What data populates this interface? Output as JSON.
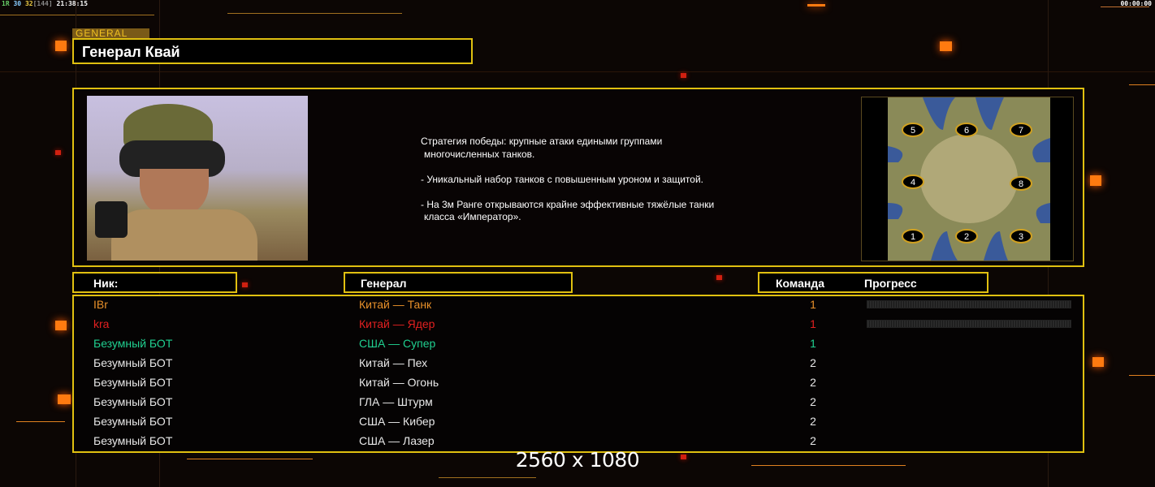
{
  "status_bar": {
    "fps_label": "1R",
    "fps_a": "30",
    "fps_b": "32",
    "fps_c": "[144]",
    "clock": "21:38:15",
    "timer": "00:00:00"
  },
  "general": {
    "tag": "GENERAL",
    "title": "Генерал Квай",
    "description": [
      "Стратегия победы: крупные атаки едиными группами",
      "многочисленных танков.",
      "",
      "- Уникальный набор танков с повышенным уроном и защитой.",
      "",
      "- На 3м Ранге открываются крайне эффективные тяжёлые танки",
      "класса «Император»."
    ]
  },
  "map": {
    "slots": [
      "1",
      "2",
      "3",
      "4",
      "5",
      "6",
      "7",
      "8"
    ]
  },
  "table": {
    "headers": {
      "nick": "Ник:",
      "general": "Генерал",
      "team": "Команда",
      "progress": "Прогресс"
    },
    "rows": [
      {
        "nick": "IBr",
        "general": "Китай — Танк",
        "team": "1",
        "color": "#e8902a",
        "progress": 0
      },
      {
        "nick": "kra",
        "general": "Китай — Ядер",
        "team": "1",
        "color": "#e02020",
        "progress": 0
      },
      {
        "nick": "Безумный БОТ",
        "general": "США — Супер",
        "team": "1",
        "color": "#20d090"
      },
      {
        "nick": "Безумный БОТ",
        "general": "Китай — Пех",
        "team": "2",
        "color": "#e8e8e8"
      },
      {
        "nick": "Безумный БОТ",
        "general": "Китай — Огонь",
        "team": "2",
        "color": "#e8e8e8"
      },
      {
        "nick": "Безумный БОТ",
        "general": "ГЛА — Штурм",
        "team": "2",
        "color": "#e8e8e8"
      },
      {
        "nick": "Безумный БОТ",
        "general": "США — Кибер",
        "team": "2",
        "color": "#e8e8e8"
      },
      {
        "nick": "Безумный БОТ",
        "general": "США — Лазер",
        "team": "2",
        "color": "#e8e8e8"
      }
    ]
  },
  "resolution": "2560 x 1080",
  "colors": {
    "accent": "#e0c010",
    "highlight": "#ff7a10"
  }
}
